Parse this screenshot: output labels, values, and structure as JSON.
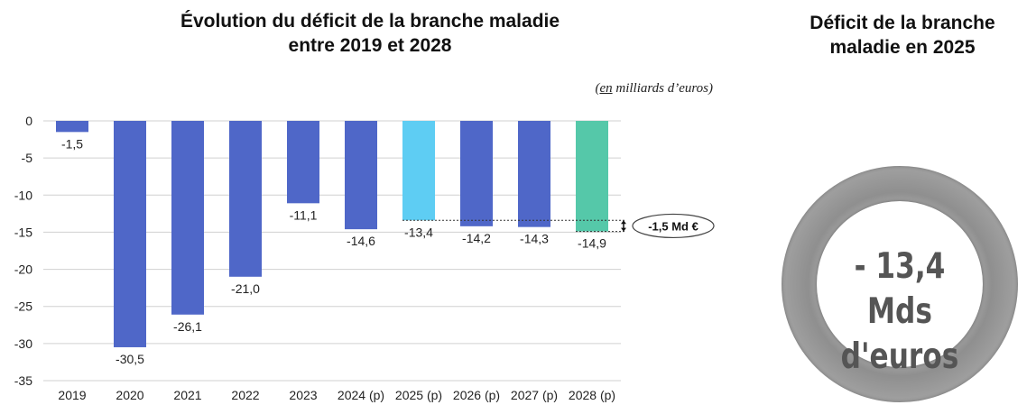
{
  "left_title_line1": "Évolution du déficit de la branche maladie",
  "left_title_line2": "entre 2019 et 2028",
  "unit_prefix": "en",
  "unit_suffix": " milliards d’euros)",
  "right_title_line1": "Déficit de la branche",
  "right_title_line2": "maladie en 2025",
  "ring_line1": "- 13,4 Mds",
  "ring_line2": "d'euros",
  "annotation": "-1,5 Md €",
  "colors": {
    "bar": "#4f67c8",
    "highlight_2025": "#5ecdf3",
    "highlight_2028": "#55c8a9",
    "ring": "#9a9a9a"
  },
  "chart_data": {
    "type": "bar",
    "categories": [
      "2019",
      "2020",
      "2021",
      "2022",
      "2023",
      "2024 (p)",
      "2025 (p)",
      "2026 (p)",
      "2027 (p)",
      "2028 (p)"
    ],
    "values": [
      -1.5,
      -30.5,
      -26.1,
      -21.0,
      -11.1,
      -14.6,
      -13.4,
      -14.2,
      -14.3,
      -14.9
    ],
    "value_labels": [
      "-1,5",
      "-30,5",
      "-26,1",
      "-21,0",
      "-11,1",
      "-14,6",
      "-13,4",
      "-14,2",
      "-14,3",
      "-14,9"
    ],
    "ylim": [
      -35,
      0
    ],
    "yticks": [
      0,
      -5,
      -10,
      -15,
      -20,
      -25,
      -30,
      -35
    ],
    "grid": true,
    "legend": "none"
  }
}
